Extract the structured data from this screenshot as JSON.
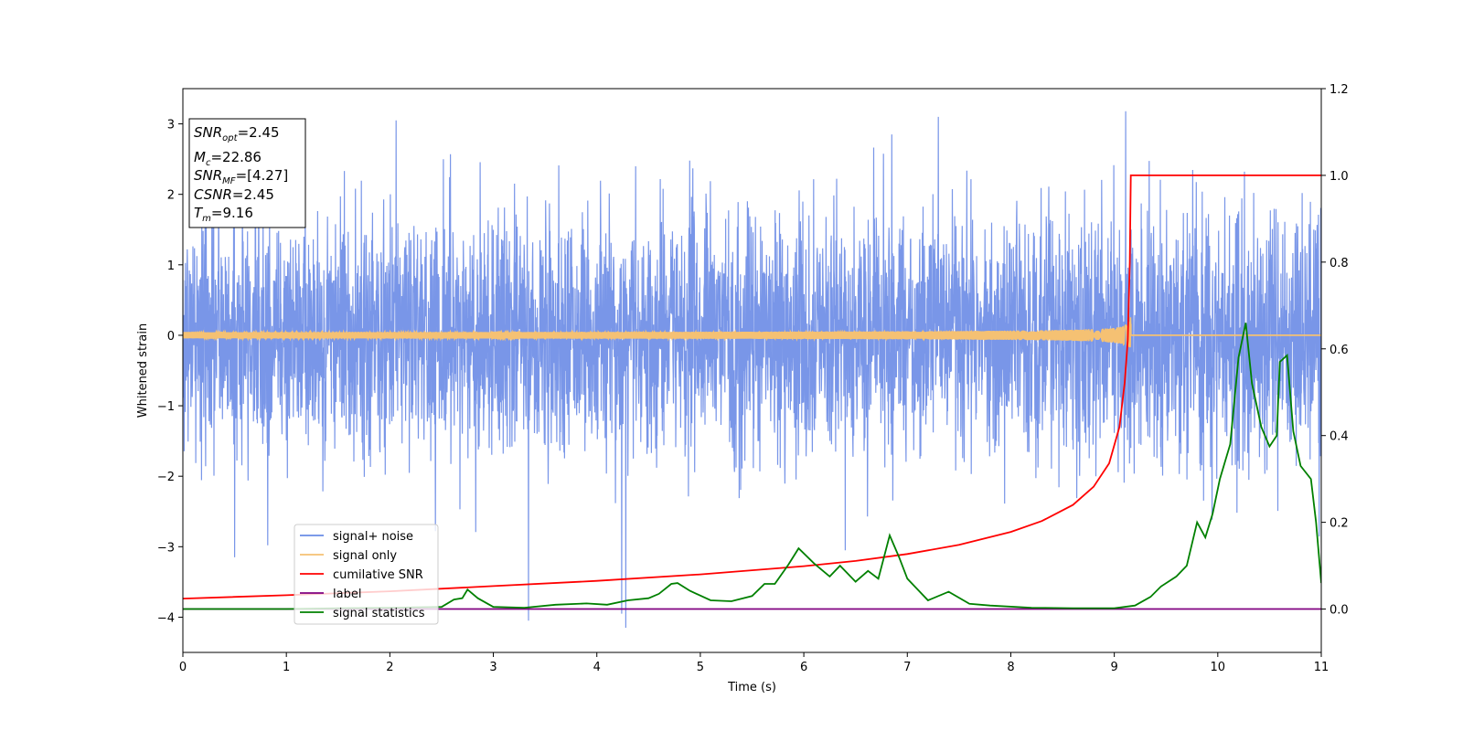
{
  "chart_data": {
    "type": "line",
    "title": "",
    "xlabel": "Time (s)",
    "ylabel": "Whitened strain",
    "y2label": "",
    "xlim": [
      0,
      11
    ],
    "ylim": [
      -4.5,
      3.5
    ],
    "y2lim": [
      -0.1,
      1.2
    ],
    "x_ticks": [
      0,
      1,
      2,
      3,
      4,
      5,
      6,
      7,
      8,
      9,
      10,
      11
    ],
    "y_ticks": [
      -4,
      -3,
      -2,
      -1,
      0,
      1,
      2,
      3
    ],
    "y2_ticks": [
      0.0,
      0.2,
      0.4,
      0.6,
      0.8,
      1.0,
      1.2
    ],
    "legend_position": "lower-left",
    "grid": false,
    "info_box": [
      {
        "base": "SNR",
        "sub": "opt",
        "value": "=2.45"
      },
      {
        "base": "M",
        "sub": "c",
        "value": "=22.86"
      },
      {
        "base": "SNR",
        "sub": "MF",
        "value": "=[4.27]"
      },
      {
        "base": "CSNR",
        "sub": "",
        "value": "=2.45"
      },
      {
        "base": "T",
        "sub": "m",
        "value": "=9.16"
      }
    ],
    "series": [
      {
        "name": "signal+ noise",
        "axis": "left",
        "color": "#6a8be6",
        "kind": "noise",
        "sigma": 0.85,
        "extremes": [
          [
            0.5,
            -3.15
          ],
          [
            0.82,
            -2.98
          ],
          [
            2.06,
            3.05
          ],
          [
            3.34,
            -4.05
          ],
          [
            4.28,
            -4.15
          ],
          [
            4.24,
            -3.95
          ],
          [
            6.4,
            -3.05
          ],
          [
            7.3,
            3.1
          ],
          [
            9.11,
            3.18
          ],
          [
            6.85,
            2.85
          ]
        ]
      },
      {
        "name": "signal only",
        "axis": "left",
        "color": "#f5c173",
        "kind": "chirp",
        "merger_time": 9.16,
        "peak_amplitude": 0.52
      },
      {
        "name": "cumilative SNR",
        "axis": "right",
        "color": "#ff0000",
        "points": [
          [
            0,
            0.024
          ],
          [
            1,
            0.032
          ],
          [
            2,
            0.041
          ],
          [
            3,
            0.053
          ],
          [
            4,
            0.065
          ],
          [
            5,
            0.08
          ],
          [
            6,
            0.099
          ],
          [
            6.5,
            0.111
          ],
          [
            7,
            0.127
          ],
          [
            7.5,
            0.148
          ],
          [
            8,
            0.178
          ],
          [
            8.3,
            0.203
          ],
          [
            8.6,
            0.24
          ],
          [
            8.8,
            0.282
          ],
          [
            8.95,
            0.336
          ],
          [
            9.05,
            0.42
          ],
          [
            9.1,
            0.522
          ],
          [
            9.13,
            0.62
          ],
          [
            9.15,
            0.8
          ],
          [
            9.16,
            1.0
          ],
          [
            11,
            1.0
          ]
        ]
      },
      {
        "name": "label",
        "axis": "right",
        "color": "#800080",
        "points": [
          [
            0,
            0.0
          ],
          [
            11,
            0.0
          ]
        ]
      },
      {
        "name": "signal statistics",
        "axis": "right",
        "color": "#008000",
        "points": [
          [
            0,
            0.0
          ],
          [
            0.5,
            0.0
          ],
          [
            1.0,
            0.0
          ],
          [
            1.5,
            0.002
          ],
          [
            2.0,
            0.003
          ],
          [
            2.5,
            0.005
          ],
          [
            2.62,
            0.022
          ],
          [
            2.7,
            0.025
          ],
          [
            2.75,
            0.045
          ],
          [
            2.85,
            0.025
          ],
          [
            3.0,
            0.005
          ],
          [
            3.3,
            0.003
          ],
          [
            3.6,
            0.01
          ],
          [
            3.9,
            0.013
          ],
          [
            4.1,
            0.01
          ],
          [
            4.3,
            0.02
          ],
          [
            4.5,
            0.025
          ],
          [
            4.6,
            0.035
          ],
          [
            4.72,
            0.058
          ],
          [
            4.78,
            0.06
          ],
          [
            4.9,
            0.042
          ],
          [
            5.1,
            0.02
          ],
          [
            5.3,
            0.018
          ],
          [
            5.5,
            0.03
          ],
          [
            5.62,
            0.058
          ],
          [
            5.72,
            0.058
          ],
          [
            5.85,
            0.102
          ],
          [
            5.95,
            0.14
          ],
          [
            6.1,
            0.105
          ],
          [
            6.25,
            0.075
          ],
          [
            6.35,
            0.1
          ],
          [
            6.5,
            0.063
          ],
          [
            6.62,
            0.088
          ],
          [
            6.72,
            0.07
          ],
          [
            6.83,
            0.17
          ],
          [
            6.92,
            0.12
          ],
          [
            7.0,
            0.07
          ],
          [
            7.2,
            0.02
          ],
          [
            7.4,
            0.04
          ],
          [
            7.6,
            0.012
          ],
          [
            7.8,
            0.008
          ],
          [
            8.2,
            0.003
          ],
          [
            8.6,
            0.002
          ],
          [
            9.0,
            0.002
          ],
          [
            9.2,
            0.008
          ],
          [
            9.35,
            0.028
          ],
          [
            9.45,
            0.052
          ],
          [
            9.6,
            0.075
          ],
          [
            9.7,
            0.1
          ],
          [
            9.8,
            0.2
          ],
          [
            9.88,
            0.165
          ],
          [
            9.95,
            0.22
          ],
          [
            10.02,
            0.3
          ],
          [
            10.12,
            0.38
          ],
          [
            10.2,
            0.58
          ],
          [
            10.27,
            0.66
          ],
          [
            10.33,
            0.52
          ],
          [
            10.42,
            0.42
          ],
          [
            10.5,
            0.375
          ],
          [
            10.57,
            0.4
          ],
          [
            10.6,
            0.57
          ],
          [
            10.67,
            0.585
          ],
          [
            10.73,
            0.41
          ],
          [
            10.8,
            0.33
          ],
          [
            10.9,
            0.3
          ],
          [
            10.95,
            0.2
          ],
          [
            11.0,
            0.06
          ]
        ]
      }
    ]
  }
}
